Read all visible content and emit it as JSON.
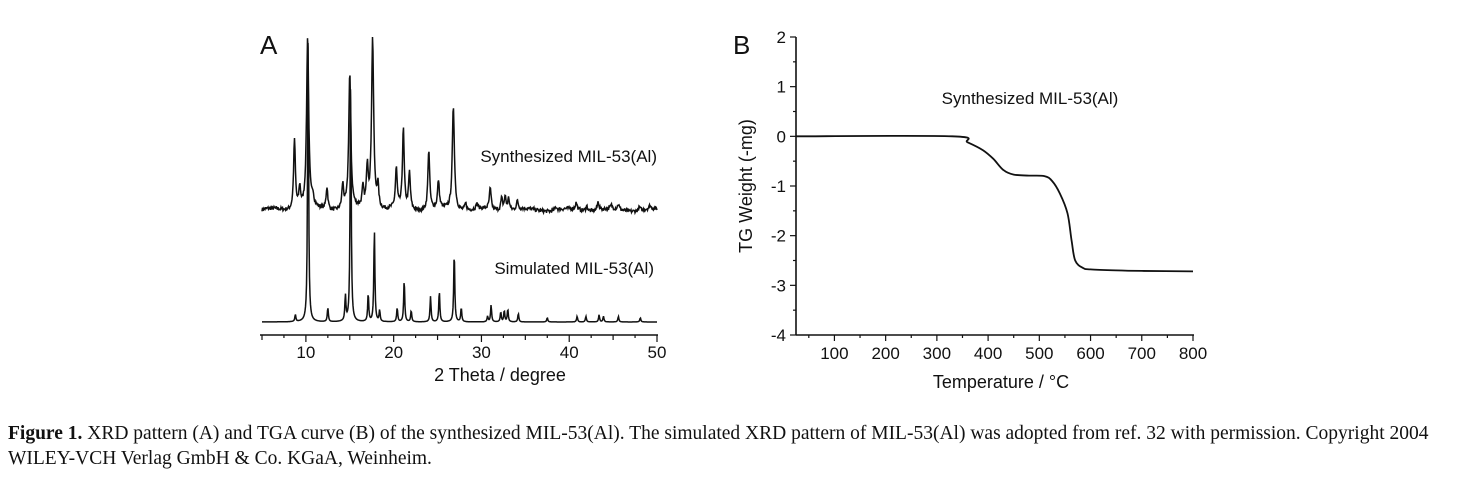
{
  "chart_data": [
    {
      "type": "line",
      "panel_label": "A",
      "title": "",
      "xlabel": "2 Theta / degree",
      "ylabel": "",
      "xlim": [
        5,
        50
      ],
      "xticks": [
        10,
        20,
        30,
        40,
        50
      ],
      "grid": false,
      "y_units": "relative intensity (a.u., stacked, no y axis shown)",
      "series": [
        {
          "name": "Synthesized MIL-53(Al)",
          "peaks": [
            [
              8.7,
              41
            ],
            [
              9.3,
              12
            ],
            [
              10.2,
              100
            ],
            [
              10.8,
              6
            ],
            [
              12.4,
              13
            ],
            [
              14.2,
              14
            ],
            [
              15.0,
              78
            ],
            [
              16.5,
              11
            ],
            [
              17.0,
              24
            ],
            [
              17.6,
              100
            ],
            [
              18.2,
              13
            ],
            [
              20.3,
              23
            ],
            [
              21.1,
              46
            ],
            [
              21.8,
              21
            ],
            [
              24.0,
              35
            ],
            [
              25.1,
              16
            ],
            [
              26.8,
              60
            ],
            [
              28.2,
              4
            ],
            [
              29.5,
              3
            ],
            [
              31.0,
              12
            ],
            [
              32.3,
              7
            ],
            [
              32.7,
              8
            ],
            [
              33.1,
              7
            ],
            [
              34.1,
              5
            ],
            [
              38.5,
              2
            ],
            [
              40.8,
              4
            ],
            [
              42.0,
              3
            ],
            [
              43.3,
              5
            ],
            [
              44.8,
              2
            ],
            [
              45.6,
              3
            ],
            [
              48.0,
              2
            ],
            [
              49.2,
              2
            ]
          ]
        },
        {
          "name": "Simulated MIL-53(Al)",
          "peaks": [
            [
              8.8,
              2.5
            ],
            [
              10.25,
              100
            ],
            [
              12.5,
              5
            ],
            [
              14.5,
              9
            ],
            [
              15.1,
              87
            ],
            [
              17.1,
              10
            ],
            [
              17.8,
              33
            ],
            [
              18.4,
              4
            ],
            [
              20.4,
              5
            ],
            [
              21.2,
              15
            ],
            [
              22.0,
              4
            ],
            [
              24.2,
              9
            ],
            [
              25.2,
              11
            ],
            [
              26.9,
              25
            ],
            [
              27.7,
              5
            ],
            [
              30.7,
              2
            ],
            [
              31.1,
              6
            ],
            [
              32.2,
              3.5
            ],
            [
              32.6,
              4
            ],
            [
              33.0,
              4.5
            ],
            [
              34.2,
              3
            ],
            [
              37.5,
              1.5
            ],
            [
              40.9,
              2
            ],
            [
              41.9,
              2
            ],
            [
              43.4,
              2.5
            ],
            [
              43.9,
              2
            ],
            [
              45.6,
              2
            ],
            [
              48.1,
              1.5
            ]
          ]
        }
      ]
    },
    {
      "type": "line",
      "panel_label": "B",
      "title": "",
      "xlabel": "Temperature / °C",
      "ylabel": "TG Weight (-mg)",
      "xlim": [
        25,
        800
      ],
      "ylim": [
        -4,
        2
      ],
      "xticks": [
        100,
        200,
        300,
        400,
        500,
        600,
        700,
        800
      ],
      "yticks": [
        -4,
        -3,
        -2,
        -1,
        0,
        1,
        2
      ],
      "grid": false,
      "annotation": "Synthesized MIL-53(Al)",
      "series": [
        {
          "name": "Synthesized MIL-53(Al)",
          "x": [
            25,
            330,
            360,
            390,
            410,
            430,
            450,
            480,
            510,
            525,
            540,
            555,
            563,
            570,
            585,
            600,
            650,
            700,
            800
          ],
          "y": [
            0,
            0,
            -0.12,
            -0.28,
            -0.45,
            -0.68,
            -0.77,
            -0.79,
            -0.8,
            -0.9,
            -1.15,
            -1.55,
            -2.1,
            -2.5,
            -2.65,
            -2.68,
            -2.7,
            -2.71,
            -2.72
          ]
        }
      ]
    }
  ],
  "caption": {
    "label": "Figure 1.",
    "text": " XRD pattern (A) and TGA curve (B) of the synthesized MIL-53(Al). The simulated XRD pattern of MIL-53(Al) was adopted from ref. 32 with permission. Copyright 2004 WILEY-VCH Verlag GmbH & Co. KGaA, Weinheim."
  }
}
